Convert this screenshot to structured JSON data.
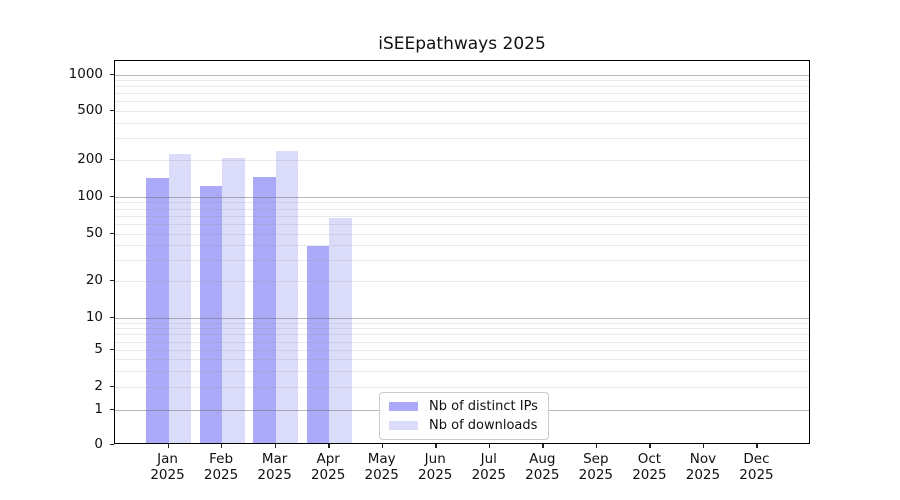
{
  "title": "iSEEpathways 2025",
  "chart_data": {
    "type": "bar",
    "title": "iSEEpathways 2025",
    "categories": [
      "Jan 2025",
      "Feb 2025",
      "Mar 2025",
      "Apr 2025",
      "May 2025",
      "Jun 2025",
      "Jul 2025",
      "Aug 2025",
      "Sep 2025",
      "Oct 2025",
      "Nov 2025",
      "Dec 2025"
    ],
    "series": [
      {
        "name": "Nb of distinct IPs",
        "color": "#aaaaf8",
        "values": [
          138,
          118,
          141,
          38,
          0,
          0,
          0,
          0,
          0,
          0,
          0,
          0
        ]
      },
      {
        "name": "Nb of downloads",
        "color": "#dbdbfa",
        "values": [
          215,
          200,
          228,
          65,
          0,
          0,
          0,
          0,
          0,
          0,
          0,
          0
        ]
      }
    ],
    "yscale": "log-like",
    "yticks": [
      0,
      1,
      2,
      5,
      10,
      20,
      50,
      100,
      200,
      500,
      1000
    ],
    "ylim": [
      0,
      1300
    ],
    "xlabel": "",
    "ylabel": "",
    "grid": "horizontal",
    "legend_position": "inside-bottom-center"
  }
}
